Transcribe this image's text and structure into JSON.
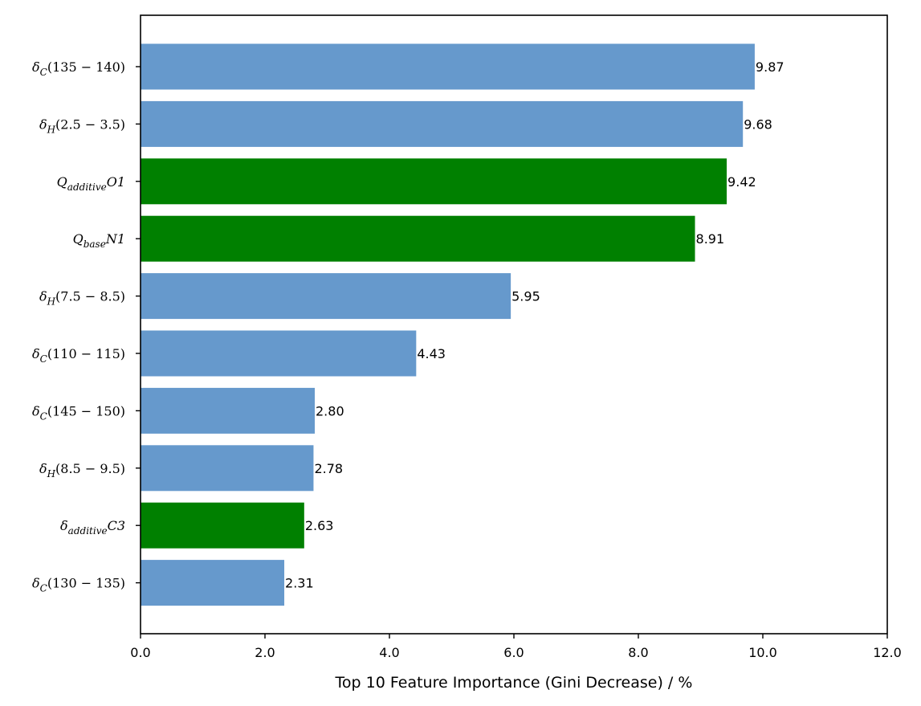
{
  "chart_data": {
    "type": "bar",
    "orientation": "horizontal",
    "xlabel": "Top 10 Feature Importance (Gini Decrease) / %",
    "ylabel": "",
    "xlim": [
      0,
      12
    ],
    "xticks": [
      0,
      2,
      4,
      6,
      8,
      10,
      12
    ],
    "xtick_labels": [
      "0.0",
      "2.0",
      "4.0",
      "6.0",
      "8.0",
      "10.0",
      "12.0"
    ],
    "grid": false,
    "categories": [
      {
        "base": "δ",
        "sub": "C",
        "rest": "(135 − 140)"
      },
      {
        "base": "δ",
        "sub": "H",
        "rest": "(2.5 − 3.5)"
      },
      {
        "base": "Q",
        "sub": "additive",
        "rest": "O1"
      },
      {
        "base": "Q",
        "sub": "base",
        "rest": "N1"
      },
      {
        "base": "δ",
        "sub": "H",
        "rest": "(7.5 − 8.5)"
      },
      {
        "base": "δ",
        "sub": "C",
        "rest": "(110 − 115)"
      },
      {
        "base": "δ",
        "sub": "C",
        "rest": "(145 − 150)"
      },
      {
        "base": "δ",
        "sub": "H",
        "rest": "(8.5 − 9.5)"
      },
      {
        "base": "δ",
        "sub": "additive",
        "rest": "C3"
      },
      {
        "base": "δ",
        "sub": "C",
        "rest": "(130 − 135)"
      }
    ],
    "values": [
      9.87,
      9.68,
      9.42,
      8.91,
      5.95,
      4.43,
      2.8,
      2.78,
      2.63,
      2.31
    ],
    "value_labels": [
      "9.87",
      "9.68",
      "9.42",
      "8.91",
      "5.95",
      "4.43",
      "2.80",
      "2.78",
      "2.63",
      "2.31"
    ],
    "bar_colors": [
      "#6699cc",
      "#6699cc",
      "#008000",
      "#008000",
      "#6699cc",
      "#6699cc",
      "#6699cc",
      "#6699cc",
      "#008000",
      "#6699cc"
    ],
    "colors": {
      "nmr": "#6699cc",
      "other": "#008000"
    }
  }
}
